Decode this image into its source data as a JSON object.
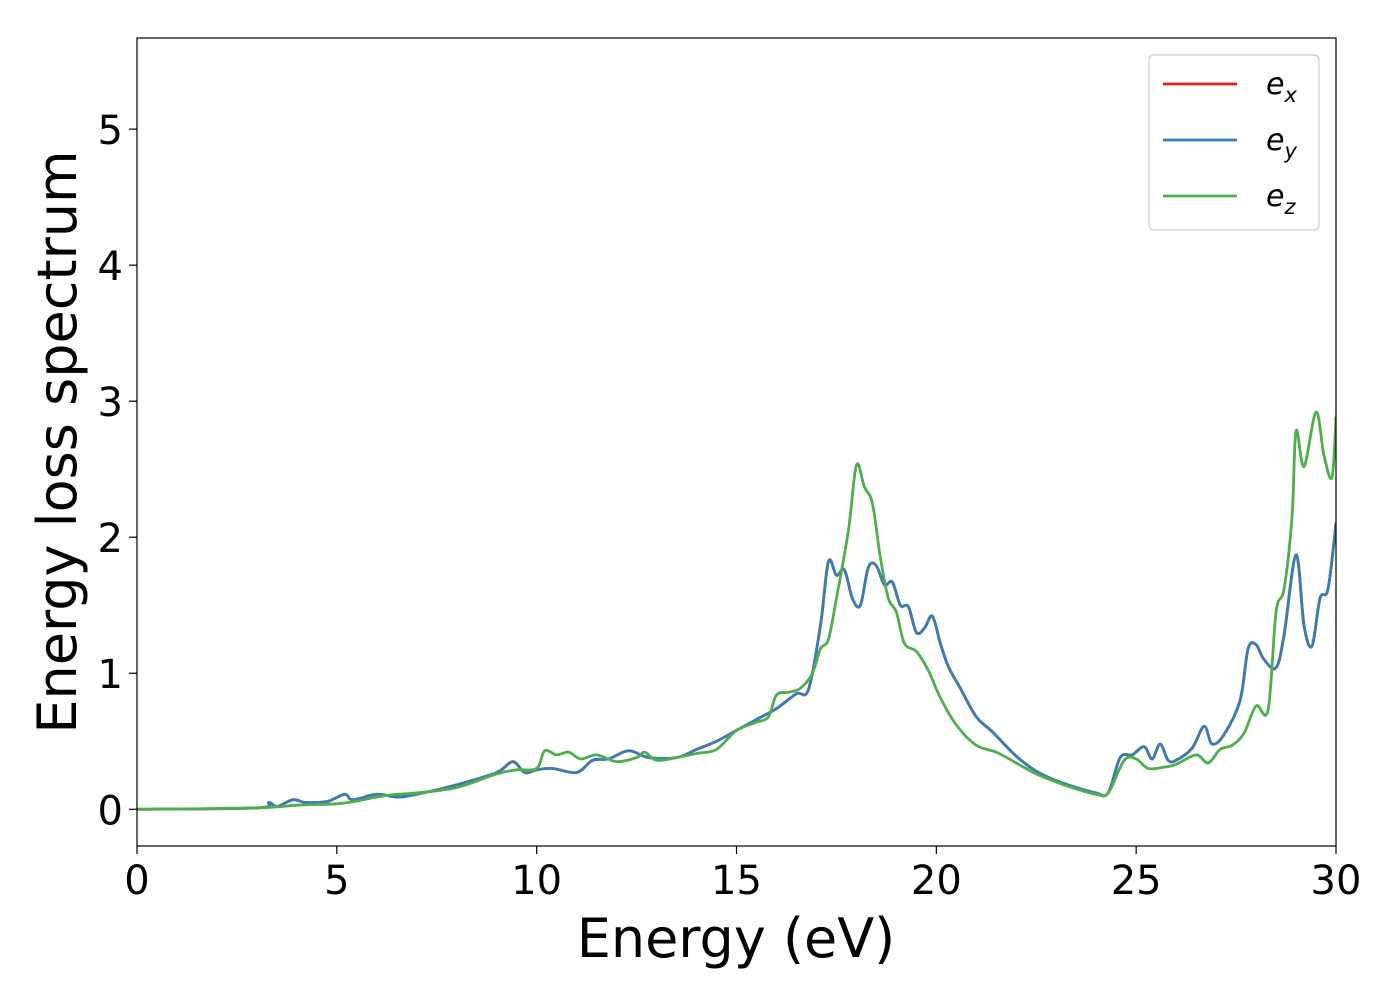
{
  "chart_data": {
    "type": "line",
    "title": "",
    "xlabel": "Energy (eV)",
    "ylabel": "Energy loss spectrum",
    "xlim": [
      0,
      30
    ],
    "ylim": [
      -0.27,
      5.67
    ],
    "xticks": [
      0,
      5,
      10,
      15,
      20,
      25,
      30
    ],
    "yticks": [
      0,
      1,
      2,
      3,
      4,
      5
    ],
    "grid": false,
    "legend": {
      "placement": "top-right"
    },
    "series": [
      {
        "name": "e_x",
        "label_base": "e",
        "label_sub": "x",
        "color": "#e41a1c",
        "x": [
          0,
          3,
          3.3,
          3.5,
          3.9,
          4.2,
          4.5,
          4.8,
          5.2,
          5.4,
          6.0,
          6.5,
          7.0,
          8.0,
          9.0,
          9.4,
          9.7,
          10.0,
          10.4,
          11.0,
          11.4,
          11.8,
          12.3,
          12.8,
          13.5,
          14.0,
          14.5,
          15.0,
          15.5,
          16.0,
          16.5,
          16.8,
          17.1,
          17.3,
          17.5,
          17.7,
          17.9,
          18.1,
          18.3,
          18.5,
          18.7,
          18.9,
          19.1,
          19.3,
          19.5,
          19.7,
          19.9,
          20.1,
          20.3,
          20.6,
          21.0,
          21.4,
          22.0,
          22.5,
          23.0,
          23.5,
          24.0,
          24.3,
          24.6,
          24.9,
          25.2,
          25.4,
          25.6,
          25.8,
          26.0,
          26.4,
          26.7,
          26.9,
          27.2,
          27.6,
          27.8,
          28.0,
          28.2,
          28.5,
          28.7,
          29.0,
          29.2,
          29.4,
          29.6,
          29.8,
          30.0
        ],
        "y": [
          0,
          0.01,
          0.05,
          0.02,
          0.07,
          0.05,
          0.05,
          0.06,
          0.11,
          0.07,
          0.11,
          0.09,
          0.11,
          0.18,
          0.27,
          0.35,
          0.27,
          0.29,
          0.3,
          0.27,
          0.36,
          0.37,
          0.43,
          0.38,
          0.38,
          0.44,
          0.5,
          0.58,
          0.66,
          0.74,
          0.85,
          0.88,
          1.35,
          1.82,
          1.72,
          1.76,
          1.55,
          1.5,
          1.78,
          1.79,
          1.65,
          1.67,
          1.5,
          1.49,
          1.3,
          1.33,
          1.42,
          1.22,
          1.05,
          0.89,
          0.68,
          0.57,
          0.39,
          0.28,
          0.21,
          0.16,
          0.12,
          0.12,
          0.38,
          0.4,
          0.46,
          0.37,
          0.48,
          0.36,
          0.36,
          0.45,
          0.61,
          0.48,
          0.55,
          0.8,
          1.18,
          1.21,
          1.1,
          1.04,
          1.28,
          1.87,
          1.35,
          1.2,
          1.55,
          1.62,
          2.1
        ]
      },
      {
        "name": "e_y",
        "label_base": "e",
        "label_sub": "y",
        "color": "#377eb8",
        "x": [
          0,
          3,
          3.3,
          3.5,
          3.9,
          4.2,
          4.5,
          4.8,
          5.2,
          5.4,
          6.0,
          6.5,
          7.0,
          8.0,
          9.0,
          9.4,
          9.7,
          10.0,
          10.4,
          11.0,
          11.4,
          11.8,
          12.3,
          12.8,
          13.5,
          14.0,
          14.5,
          15.0,
          15.5,
          16.0,
          16.5,
          16.8,
          17.1,
          17.3,
          17.5,
          17.7,
          17.9,
          18.1,
          18.3,
          18.5,
          18.7,
          18.9,
          19.1,
          19.3,
          19.5,
          19.7,
          19.9,
          20.1,
          20.3,
          20.6,
          21.0,
          21.4,
          22.0,
          22.5,
          23.0,
          23.5,
          24.0,
          24.3,
          24.6,
          24.9,
          25.2,
          25.4,
          25.6,
          25.8,
          26.0,
          26.4,
          26.7,
          26.9,
          27.2,
          27.6,
          27.8,
          28.0,
          28.2,
          28.5,
          28.7,
          29.0,
          29.2,
          29.4,
          29.6,
          29.8,
          30.0
        ],
        "y": [
          0,
          0.01,
          0.05,
          0.02,
          0.07,
          0.05,
          0.05,
          0.06,
          0.11,
          0.07,
          0.11,
          0.09,
          0.11,
          0.18,
          0.27,
          0.35,
          0.27,
          0.29,
          0.3,
          0.27,
          0.36,
          0.37,
          0.43,
          0.38,
          0.38,
          0.44,
          0.5,
          0.58,
          0.66,
          0.74,
          0.85,
          0.88,
          1.35,
          1.82,
          1.72,
          1.76,
          1.55,
          1.5,
          1.78,
          1.79,
          1.65,
          1.67,
          1.5,
          1.49,
          1.3,
          1.33,
          1.42,
          1.22,
          1.05,
          0.89,
          0.68,
          0.57,
          0.39,
          0.28,
          0.21,
          0.16,
          0.12,
          0.12,
          0.38,
          0.4,
          0.46,
          0.37,
          0.48,
          0.36,
          0.36,
          0.45,
          0.61,
          0.48,
          0.55,
          0.8,
          1.18,
          1.21,
          1.1,
          1.04,
          1.28,
          1.87,
          1.35,
          1.2,
          1.55,
          1.62,
          2.1
        ]
      },
      {
        "name": "e_z",
        "label_base": "e",
        "label_sub": "z",
        "color": "#4daf4a",
        "x": [
          0,
          3,
          4,
          5,
          5.5,
          6.0,
          6.5,
          7.0,
          8.0,
          9.0,
          9.5,
          10.0,
          10.2,
          10.5,
          10.8,
          11.1,
          11.5,
          12.0,
          12.5,
          12.7,
          13.0,
          13.5,
          14.0,
          14.5,
          15.0,
          15.5,
          15.8,
          16.0,
          16.3,
          16.6,
          16.9,
          17.1,
          17.3,
          17.5,
          17.8,
          18.0,
          18.2,
          18.4,
          18.6,
          18.8,
          19.0,
          19.2,
          19.5,
          19.8,
          20.1,
          20.5,
          21.0,
          21.5,
          22.0,
          22.5,
          23.0,
          23.5,
          24.0,
          24.3,
          24.7,
          25.0,
          25.3,
          25.7,
          26.0,
          26.5,
          26.8,
          27.1,
          27.4,
          27.7,
          28.0,
          28.3,
          28.5,
          28.7,
          28.9,
          29.0,
          29.2,
          29.5,
          29.7,
          29.9,
          30.0
        ],
        "y": [
          0,
          0.01,
          0.03,
          0.04,
          0.06,
          0.09,
          0.11,
          0.12,
          0.16,
          0.26,
          0.29,
          0.3,
          0.43,
          0.4,
          0.42,
          0.37,
          0.4,
          0.35,
          0.38,
          0.42,
          0.36,
          0.38,
          0.41,
          0.44,
          0.58,
          0.64,
          0.68,
          0.84,
          0.86,
          0.89,
          1.0,
          1.18,
          1.25,
          1.55,
          2.05,
          2.53,
          2.37,
          2.25,
          1.85,
          1.55,
          1.45,
          1.22,
          1.16,
          1.02,
          0.82,
          0.62,
          0.47,
          0.42,
          0.34,
          0.26,
          0.2,
          0.15,
          0.11,
          0.12,
          0.36,
          0.37,
          0.3,
          0.31,
          0.33,
          0.4,
          0.34,
          0.44,
          0.47,
          0.56,
          0.76,
          0.73,
          1.45,
          1.62,
          2.15,
          2.78,
          2.52,
          2.92,
          2.6,
          2.44,
          2.88
        ]
      }
    ]
  }
}
